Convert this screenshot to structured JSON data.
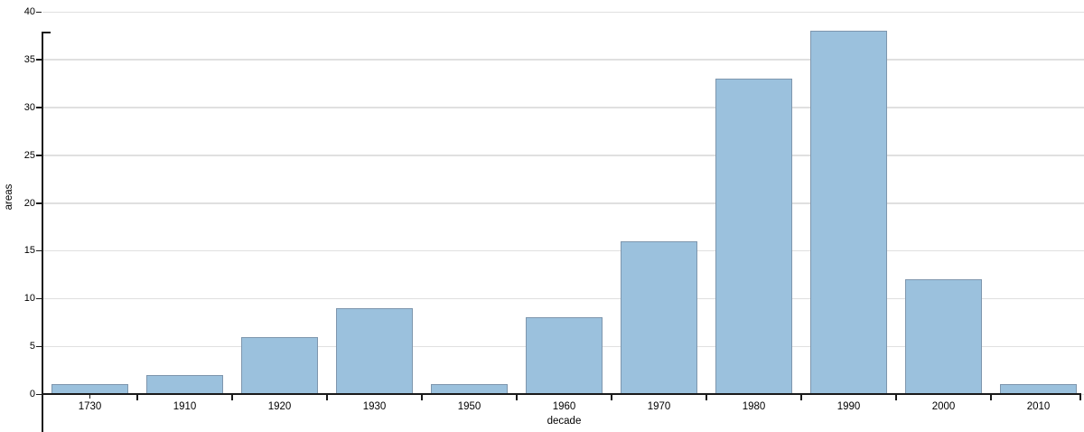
{
  "chart_data": {
    "type": "bar",
    "title": "",
    "xlabel": "decade",
    "ylabel": "areas",
    "categories": [
      "1730",
      "1910",
      "1920",
      "1930",
      "1950",
      "1960",
      "1970",
      "1980",
      "1990",
      "2000",
      "2010"
    ],
    "values": [
      1,
      2,
      6,
      9,
      1,
      8,
      16,
      33,
      38,
      12,
      1
    ],
    "ylim": [
      0,
      40
    ],
    "yticks": [
      0,
      5,
      10,
      15,
      20,
      25,
      30,
      35,
      40
    ],
    "grid": true,
    "legend_position": "none",
    "colors": {
      "bar_fill": "#9bc1dd",
      "bar_stroke": "#7e96ad",
      "gridline": "#e0e0e0",
      "axis": "#1a1a1a",
      "text": "#000000"
    }
  }
}
